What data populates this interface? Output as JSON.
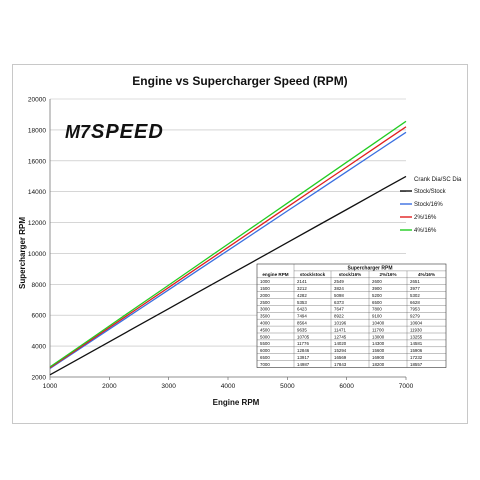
{
  "logo": {
    "text_m7": "M7",
    "text_speed": "SPEED"
  },
  "chart_data": {
    "type": "line",
    "title": "Engine vs Supercharger Speed (RPM)",
    "xlabel": "Engine RPM",
    "ylabel": "Supercharger RPM",
    "xlim": [
      1000,
      7000
    ],
    "ylim": [
      2000,
      20000
    ],
    "xticks": [
      1000,
      2000,
      3000,
      4000,
      5000,
      6000,
      7000
    ],
    "yticks": [
      2000,
      4000,
      6000,
      8000,
      10000,
      12000,
      14000,
      16000,
      18000,
      20000
    ],
    "grid": "horizontal",
    "legend_title": "Crank Dia/SC Dia",
    "legend_position": "right",
    "x": [
      1000,
      1500,
      2000,
      2500,
      3000,
      3500,
      4000,
      4500,
      5000,
      5500,
      6000,
      6500,
      7000
    ],
    "series": [
      {
        "name": "Stock/Stock",
        "color": "#111111",
        "values": [
          2141,
          3212,
          4282,
          5353,
          6423,
          7494,
          8564,
          9635,
          10705,
          11776,
          12846,
          13917,
          14987
        ]
      },
      {
        "name": "Stock/16%",
        "color": "#3a6fe0",
        "values": [
          2549,
          3824,
          5098,
          6373,
          7647,
          8922,
          10196,
          11471,
          12745,
          14020,
          15294,
          16569,
          17843
        ]
      },
      {
        "name": "2%/16%",
        "color": "#e02020",
        "values": [
          2600,
          3900,
          5200,
          6500,
          7800,
          9100,
          10400,
          11700,
          13000,
          14300,
          15600,
          16900,
          18200
        ]
      },
      {
        "name": "4%/16%",
        "color": "#22cc22",
        "values": [
          2651,
          3977,
          5302,
          6628,
          7953,
          9279,
          10604,
          11930,
          13255,
          14581,
          15906,
          17232,
          18557
        ]
      }
    ],
    "table": {
      "title": "Supercharger RPM",
      "columns": [
        "engine RPM",
        "stock/stock",
        "stock/16%",
        "2%/16%",
        "4%/16%"
      ],
      "rows": [
        [
          "1000",
          "2141",
          "2549",
          "2600",
          "2651"
        ],
        [
          "1500",
          "3212",
          "3824",
          "3900",
          "3977"
        ],
        [
          "2000",
          "4282",
          "5098",
          "5200",
          "5302"
        ],
        [
          "2500",
          "5353",
          "6373",
          "6500",
          "6628"
        ],
        [
          "3000",
          "6423",
          "7647",
          "7800",
          "7953"
        ],
        [
          "3500",
          "7494",
          "8922",
          "9100",
          "9279"
        ],
        [
          "4000",
          "8564",
          "10196",
          "10400",
          "10604"
        ],
        [
          "4500",
          "9635",
          "11471",
          "11700",
          "11930"
        ],
        [
          "5000",
          "10705",
          "12745",
          "13000",
          "13255"
        ],
        [
          "5500",
          "11776",
          "14020",
          "14300",
          "14581"
        ],
        [
          "6000",
          "12846",
          "15294",
          "15600",
          "15906"
        ],
        [
          "6500",
          "13917",
          "16569",
          "16900",
          "17232"
        ],
        [
          "7000",
          "14987",
          "17843",
          "18200",
          "18557"
        ]
      ]
    }
  }
}
